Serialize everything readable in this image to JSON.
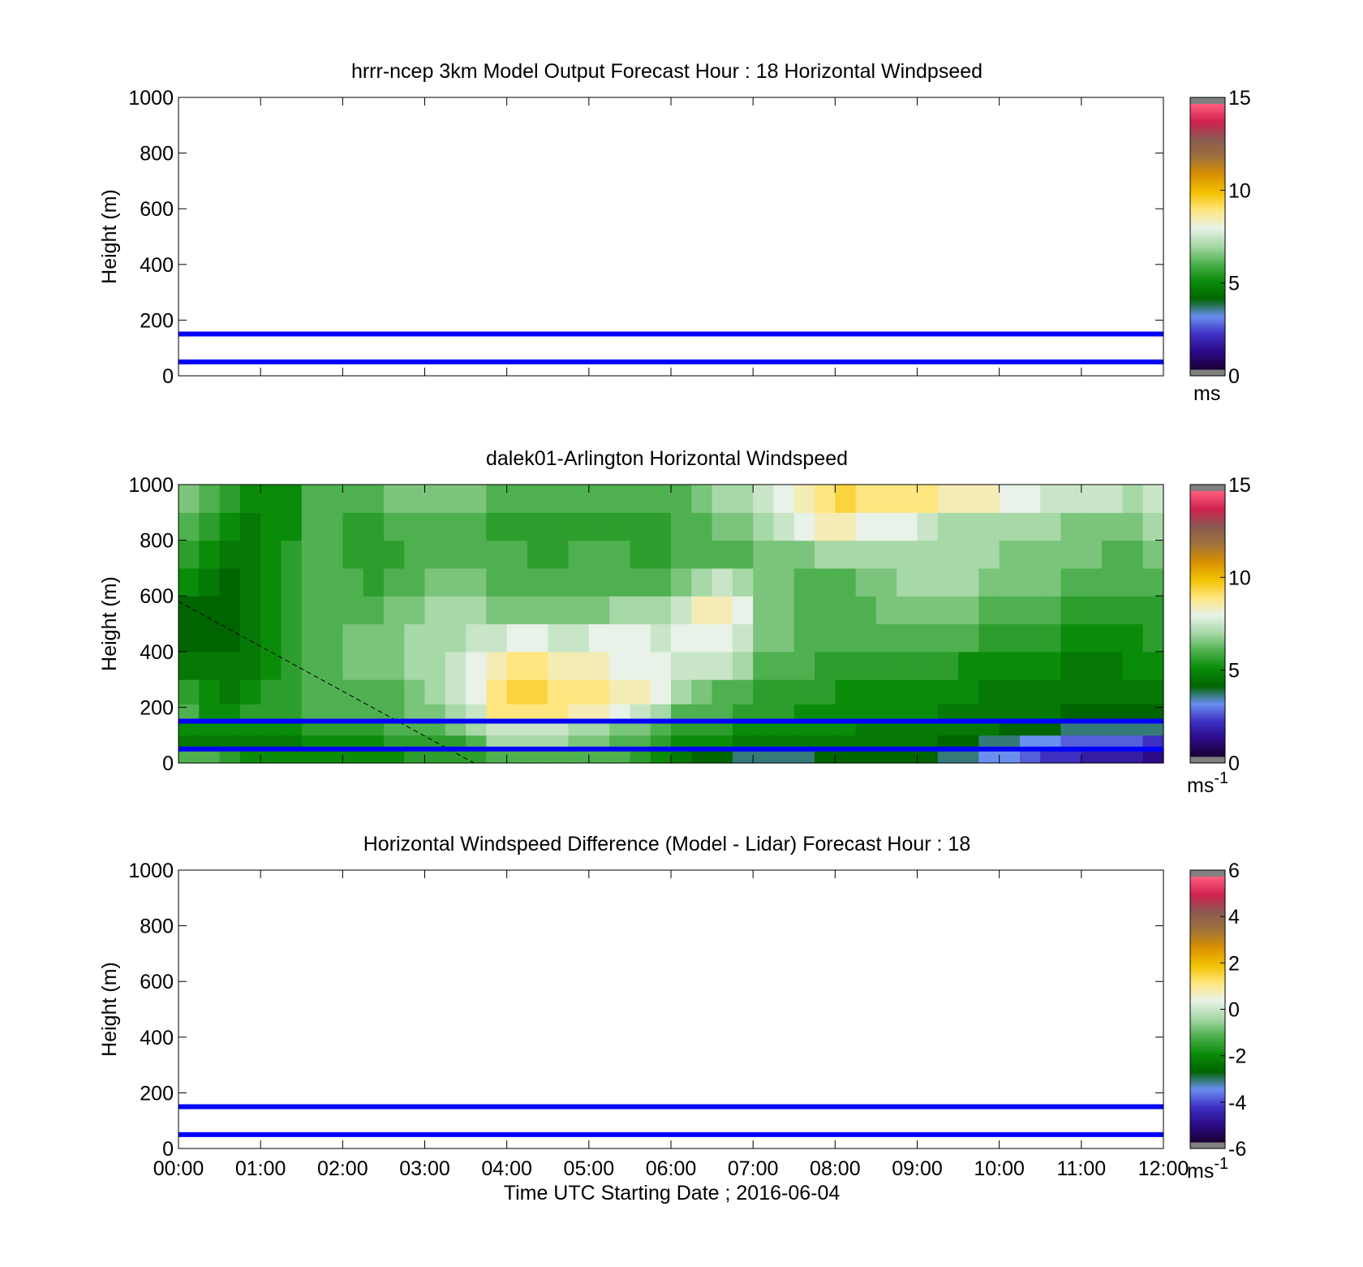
{
  "chart_data": [
    {
      "type": "heatmap",
      "title": "hrrr-ncep 3km Model Output   Forecast Hour : 18 Horizontal Windpseed",
      "ylabel": "Height (m)",
      "xlabel": "",
      "ylim": [
        0,
        1000
      ],
      "xlim": [
        0,
        12
      ],
      "yticks": [
        "0",
        "200",
        "400",
        "600",
        "800",
        "1000"
      ],
      "grid": false,
      "values": [],
      "reference_lines": {
        "color": "#0000ff",
        "heights": [
          150,
          50
        ]
      },
      "colorbar": {
        "ticks": [
          "0",
          "5",
          "10",
          "15"
        ],
        "range": [
          0,
          15
        ],
        "unit": "ms",
        "unit_superscript": "",
        "colors": [
          "#808080",
          "#1a0033",
          "#2b0a86",
          "#3d2fc2",
          "#6a8ff0",
          "#006400",
          "#0a8c0a",
          "#4fb04f",
          "#a7d8a7",
          "#e8f2e8",
          "#ffe680",
          "#f2c200",
          "#d99100",
          "#a0723a",
          "#8a5a50",
          "#d02050",
          "#ff5f7e",
          "#808080"
        ]
      }
    },
    {
      "type": "heatmap",
      "title": "dalek01-Arlington  Horizontal Windspeed",
      "ylabel": "Height (m)",
      "xlabel": "",
      "ylim": [
        0,
        1000
      ],
      "xlim": [
        0,
        12
      ],
      "yticks": [
        "0",
        "200",
        "400",
        "600",
        "800",
        "1000"
      ],
      "grid": false,
      "x": [
        0.125,
        0.375,
        0.625,
        0.875,
        1.125,
        1.375,
        1.625,
        1.875,
        2.125,
        2.375,
        2.625,
        2.875,
        3.125,
        3.375,
        3.625,
        3.875,
        4.125,
        4.375,
        4.625,
        4.875,
        5.125,
        5.375,
        5.625,
        5.875,
        6.125,
        6.375,
        6.625,
        6.875,
        7.125,
        7.375,
        7.625,
        7.875,
        8.125,
        8.375,
        8.625,
        8.875,
        9.125,
        9.375,
        9.625,
        9.875,
        10.125,
        10.375,
        10.625,
        10.875,
        11.125,
        11.375,
        11.625,
        11.875
      ],
      "y": [
        25,
        75,
        125,
        175,
        250,
        350,
        450,
        550,
        650,
        750,
        850,
        950
      ],
      "values": [
        [
          6.0,
          4.5,
          5.0,
          6.0,
          5.5,
          4.5,
          4.0,
          4.0,
          5.0,
          5.5,
          6.0,
          6.5
        ],
        [
          6.0,
          4.5,
          5.0,
          5.0,
          5.0,
          4.5,
          4.0,
          4.0,
          4.5,
          5.0,
          5.5,
          6.0
        ],
        [
          5.5,
          4.5,
          5.0,
          5.0,
          4.5,
          4.5,
          4.0,
          4.0,
          4.0,
          4.5,
          5.0,
          5.5
        ],
        [
          5.0,
          4.5,
          5.0,
          5.5,
          5.0,
          4.5,
          4.5,
          4.5,
          4.5,
          4.5,
          4.5,
          5.0
        ],
        [
          5.0,
          4.5,
          5.0,
          5.5,
          5.5,
          5.0,
          5.0,
          5.0,
          5.0,
          5.0,
          5.0,
          5.0
        ],
        [
          5.0,
          4.5,
          5.0,
          5.5,
          5.5,
          5.5,
          5.5,
          5.5,
          5.5,
          5.5,
          5.0,
          5.0
        ],
        [
          5.0,
          5.0,
          5.5,
          6.0,
          6.0,
          6.0,
          6.0,
          6.0,
          6.0,
          6.0,
          6.0,
          6.0
        ],
        [
          5.0,
          5.0,
          5.5,
          6.0,
          6.0,
          6.0,
          6.0,
          6.0,
          6.0,
          6.0,
          6.0,
          6.0
        ],
        [
          5.0,
          5.0,
          5.5,
          6.0,
          6.0,
          6.5,
          6.5,
          6.0,
          6.0,
          5.5,
          5.5,
          6.0
        ],
        [
          5.0,
          5.0,
          5.5,
          6.0,
          6.0,
          6.5,
          6.5,
          6.0,
          5.5,
          5.5,
          5.5,
          6.0
        ],
        [
          5.0,
          5.5,
          6.0,
          6.0,
          6.0,
          6.5,
          6.5,
          6.5,
          6.0,
          5.5,
          6.0,
          6.5
        ],
        [
          5.5,
          5.5,
          6.0,
          6.5,
          6.5,
          7.0,
          7.0,
          6.5,
          6.0,
          6.0,
          6.0,
          6.5
        ],
        [
          5.5,
          5.5,
          6.0,
          6.5,
          7.0,
          7.0,
          7.0,
          7.0,
          6.5,
          6.0,
          6.0,
          6.5
        ],
        [
          5.5,
          5.5,
          6.5,
          7.0,
          7.5,
          7.5,
          7.0,
          7.0,
          6.5,
          6.0,
          6.0,
          6.5
        ],
        [
          5.5,
          6.0,
          7.0,
          7.5,
          8.0,
          8.0,
          7.5,
          7.0,
          6.5,
          6.0,
          6.0,
          6.5
        ],
        [
          6.0,
          7.0,
          7.5,
          9.0,
          9.0,
          8.5,
          7.5,
          6.5,
          6.0,
          6.0,
          5.5,
          6.0
        ],
        [
          6.0,
          7.0,
          7.5,
          9.0,
          9.5,
          9.0,
          8.0,
          6.5,
          6.0,
          6.0,
          5.5,
          6.0
        ],
        [
          6.0,
          7.0,
          7.5,
          9.0,
          9.5,
          9.0,
          8.0,
          6.5,
          6.0,
          5.5,
          5.5,
          6.0
        ],
        [
          6.0,
          7.0,
          7.5,
          9.0,
          9.0,
          8.5,
          7.5,
          6.5,
          6.0,
          5.5,
          5.5,
          6.0
        ],
        [
          6.0,
          6.5,
          7.0,
          8.5,
          9.0,
          8.5,
          7.5,
          6.5,
          6.0,
          6.0,
          5.5,
          6.0
        ],
        [
          6.0,
          6.5,
          7.0,
          8.5,
          9.0,
          8.5,
          8.0,
          6.5,
          6.0,
          6.0,
          5.5,
          6.0
        ],
        [
          6.0,
          6.0,
          6.5,
          8.0,
          8.5,
          8.0,
          8.0,
          7.0,
          6.0,
          6.0,
          5.5,
          6.0
        ],
        [
          5.5,
          6.0,
          6.5,
          7.5,
          8.5,
          8.0,
          8.0,
          7.0,
          6.0,
          5.5,
          5.5,
          6.0
        ],
        [
          5.0,
          5.5,
          6.0,
          7.0,
          8.0,
          8.0,
          7.5,
          7.0,
          6.0,
          5.5,
          5.5,
          6.0
        ],
        [
          4.5,
          5.0,
          5.5,
          6.0,
          7.0,
          7.5,
          8.0,
          7.5,
          6.5,
          6.0,
          6.0,
          6.0
        ],
        [
          4.0,
          5.0,
          5.5,
          6.0,
          6.5,
          7.5,
          8.0,
          8.5,
          7.0,
          6.0,
          6.0,
          6.5
        ],
        [
          4.0,
          5.0,
          5.5,
          6.0,
          6.0,
          7.5,
          8.0,
          8.5,
          7.5,
          6.0,
          6.5,
          7.0
        ],
        [
          3.5,
          4.5,
          5.0,
          5.5,
          6.0,
          7.0,
          7.5,
          8.0,
          7.0,
          6.0,
          6.5,
          7.0
        ],
        [
          3.5,
          4.5,
          5.0,
          5.5,
          5.5,
          6.0,
          6.5,
          6.5,
          6.5,
          6.5,
          7.0,
          7.5
        ],
        [
          3.5,
          4.5,
          5.0,
          5.5,
          5.5,
          6.0,
          6.5,
          6.5,
          6.5,
          6.5,
          7.5,
          8.0
        ],
        [
          3.5,
          4.5,
          5.0,
          5.0,
          5.5,
          6.0,
          6.0,
          6.0,
          6.0,
          6.5,
          8.0,
          8.5
        ],
        [
          4.0,
          4.5,
          5.0,
          5.0,
          5.5,
          5.5,
          6.0,
          6.0,
          6.0,
          7.0,
          8.5,
          9.0
        ],
        [
          4.0,
          4.5,
          5.0,
          5.0,
          5.0,
          5.5,
          6.0,
          6.0,
          6.0,
          7.0,
          8.5,
          9.5
        ],
        [
          4.0,
          4.5,
          4.5,
          5.0,
          5.0,
          5.5,
          6.0,
          6.0,
          6.5,
          7.0,
          8.0,
          9.0
        ],
        [
          4.0,
          4.5,
          4.5,
          5.0,
          5.0,
          5.5,
          6.0,
          6.5,
          6.5,
          7.0,
          8.0,
          9.0
        ],
        [
          4.0,
          4.5,
          4.5,
          5.0,
          5.0,
          5.5,
          6.0,
          6.5,
          7.0,
          7.0,
          8.0,
          9.0
        ],
        [
          4.0,
          4.5,
          4.5,
          5.0,
          5.0,
          5.5,
          6.0,
          6.5,
          7.0,
          7.0,
          7.5,
          9.0
        ],
        [
          3.5,
          4.0,
          4.5,
          4.5,
          5.0,
          5.5,
          6.0,
          6.5,
          7.0,
          7.0,
          7.0,
          8.5
        ],
        [
          3.5,
          4.0,
          4.5,
          4.5,
          5.0,
          5.0,
          6.0,
          6.5,
          7.0,
          7.0,
          7.0,
          8.5
        ],
        [
          3.0,
          3.5,
          4.5,
          4.5,
          4.5,
          5.0,
          5.5,
          6.0,
          6.5,
          7.0,
          7.0,
          8.5
        ],
        [
          3.0,
          3.5,
          4.0,
          4.5,
          4.5,
          5.0,
          5.5,
          6.0,
          6.5,
          6.5,
          7.0,
          8.0
        ],
        [
          2.5,
          3.0,
          4.0,
          4.5,
          4.5,
          5.0,
          5.5,
          6.0,
          6.5,
          6.5,
          7.0,
          8.0
        ],
        [
          2.0,
          3.0,
          4.0,
          4.5,
          4.5,
          5.0,
          5.5,
          6.0,
          6.5,
          6.5,
          7.0,
          7.5
        ],
        [
          2.0,
          2.5,
          3.5,
          4.0,
          4.5,
          4.5,
          5.0,
          5.5,
          6.0,
          6.5,
          6.5,
          7.5
        ],
        [
          1.5,
          2.5,
          3.5,
          4.0,
          4.5,
          4.5,
          5.0,
          5.5,
          6.0,
          6.5,
          6.5,
          7.5
        ],
        [
          1.5,
          2.5,
          3.5,
          4.0,
          4.5,
          4.5,
          5.0,
          5.5,
          6.0,
          6.0,
          6.5,
          7.5
        ],
        [
          1.5,
          2.5,
          3.5,
          4.0,
          4.5,
          5.0,
          5.0,
          5.5,
          6.0,
          6.0,
          6.5,
          7.0
        ],
        [
          1.0,
          2.0,
          3.5,
          4.0,
          4.5,
          5.0,
          5.5,
          5.5,
          6.0,
          6.5,
          7.0,
          7.5
        ]
      ],
      "dashed_line": {
        "x": [
          0,
          3.6
        ],
        "y": [
          580,
          0
        ]
      },
      "reference_lines": {
        "color": "#0000ff",
        "heights": [
          150,
          50
        ]
      },
      "colorbar": {
        "ticks": [
          "0",
          "5",
          "10",
          "15"
        ],
        "range": [
          0,
          15
        ],
        "unit": "ms",
        "unit_superscript": "-1",
        "colors": [
          "#808080",
          "#1a0033",
          "#2b0a86",
          "#3d2fc2",
          "#6a8ff0",
          "#006400",
          "#0a8c0a",
          "#4fb04f",
          "#a7d8a7",
          "#e8f2e8",
          "#ffe680",
          "#f2c200",
          "#d99100",
          "#a0723a",
          "#8a5a50",
          "#d02050",
          "#ff5f7e",
          "#808080"
        ]
      }
    },
    {
      "type": "heatmap",
      "title": "Horizontal Windspeed Difference (Model - Lidar) Forecast Hour : 18",
      "ylabel": "Height (m)",
      "xlabel": "Time UTC  Starting Date ; 2016-06-04",
      "ylim": [
        0,
        1000
      ],
      "xlim": [
        0,
        12
      ],
      "yticks": [
        "0",
        "200",
        "400",
        "600",
        "800",
        "1000"
      ],
      "xticks": [
        "00:00",
        "01:00",
        "02:00",
        "03:00",
        "04:00",
        "05:00",
        "06:00",
        "07:00",
        "08:00",
        "09:00",
        "10:00",
        "11:00",
        "12:00"
      ],
      "grid": false,
      "values": [],
      "reference_lines": {
        "color": "#0000ff",
        "heights": [
          150,
          50
        ]
      },
      "colorbar": {
        "ticks": [
          "-6",
          "-4",
          "-2",
          "0",
          "2",
          "4",
          "6"
        ],
        "range": [
          -6,
          6
        ],
        "unit": "ms",
        "unit_superscript": "-1",
        "colors": [
          "#808080",
          "#1a0033",
          "#2b0a86",
          "#3d2fc2",
          "#6a8ff0",
          "#006400",
          "#0a8c0a",
          "#4fb04f",
          "#a7d8a7",
          "#e8f2e8",
          "#ffe680",
          "#f2c200",
          "#d99100",
          "#a0723a",
          "#8a5a50",
          "#d02050",
          "#ff5f7e",
          "#808080"
        ]
      }
    }
  ]
}
